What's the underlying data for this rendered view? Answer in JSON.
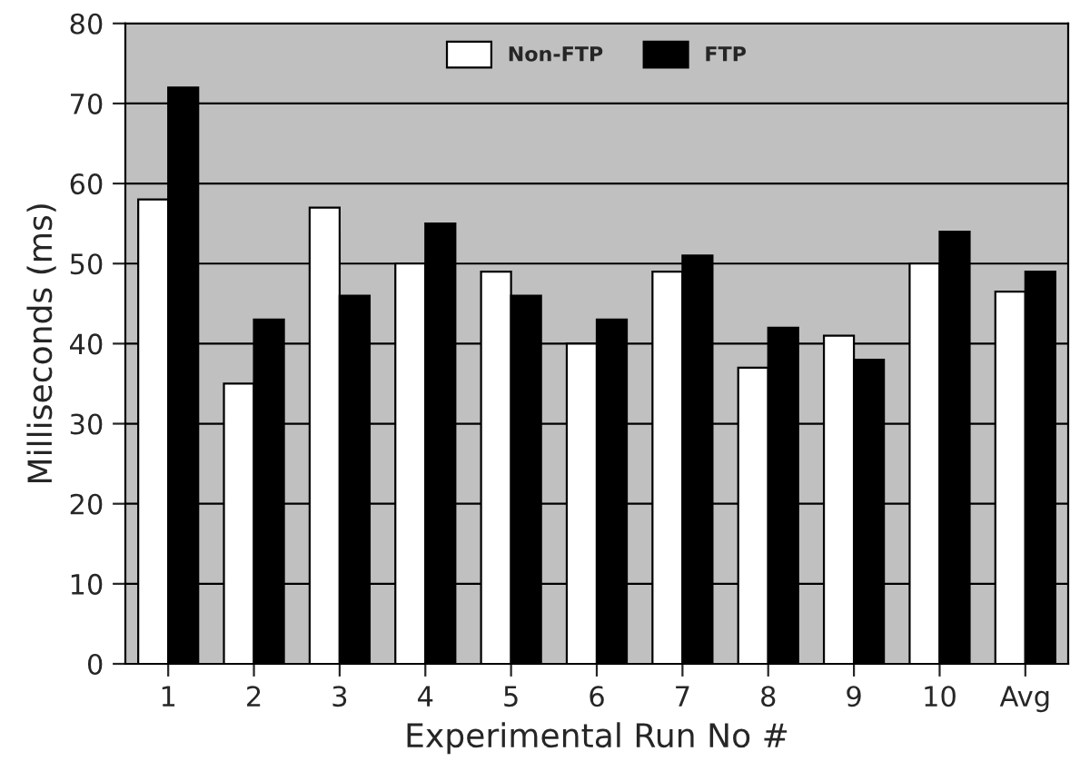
{
  "chart_data": {
    "type": "bar",
    "xlabel": "Experimental Run No #",
    "ylabel": "Milliseconds (ms)",
    "categories": [
      "1",
      "2",
      "3",
      "4",
      "5",
      "6",
      "7",
      "8",
      "9",
      "10",
      "Avg"
    ],
    "series": [
      {
        "name": "Non-FTP",
        "color": "#ffffff",
        "values": [
          58,
          35,
          57,
          50,
          49,
          40,
          49,
          37,
          41,
          50,
          46.5
        ]
      },
      {
        "name": "FTP",
        "color": "#000000",
        "values": [
          72,
          43,
          46,
          55,
          46,
          43,
          51,
          42,
          38,
          54,
          49
        ]
      }
    ],
    "ylim": [
      0,
      80
    ],
    "yticks": [
      0,
      10,
      20,
      30,
      40,
      50,
      60,
      70,
      80
    ],
    "grid": "y",
    "legend": "top"
  }
}
